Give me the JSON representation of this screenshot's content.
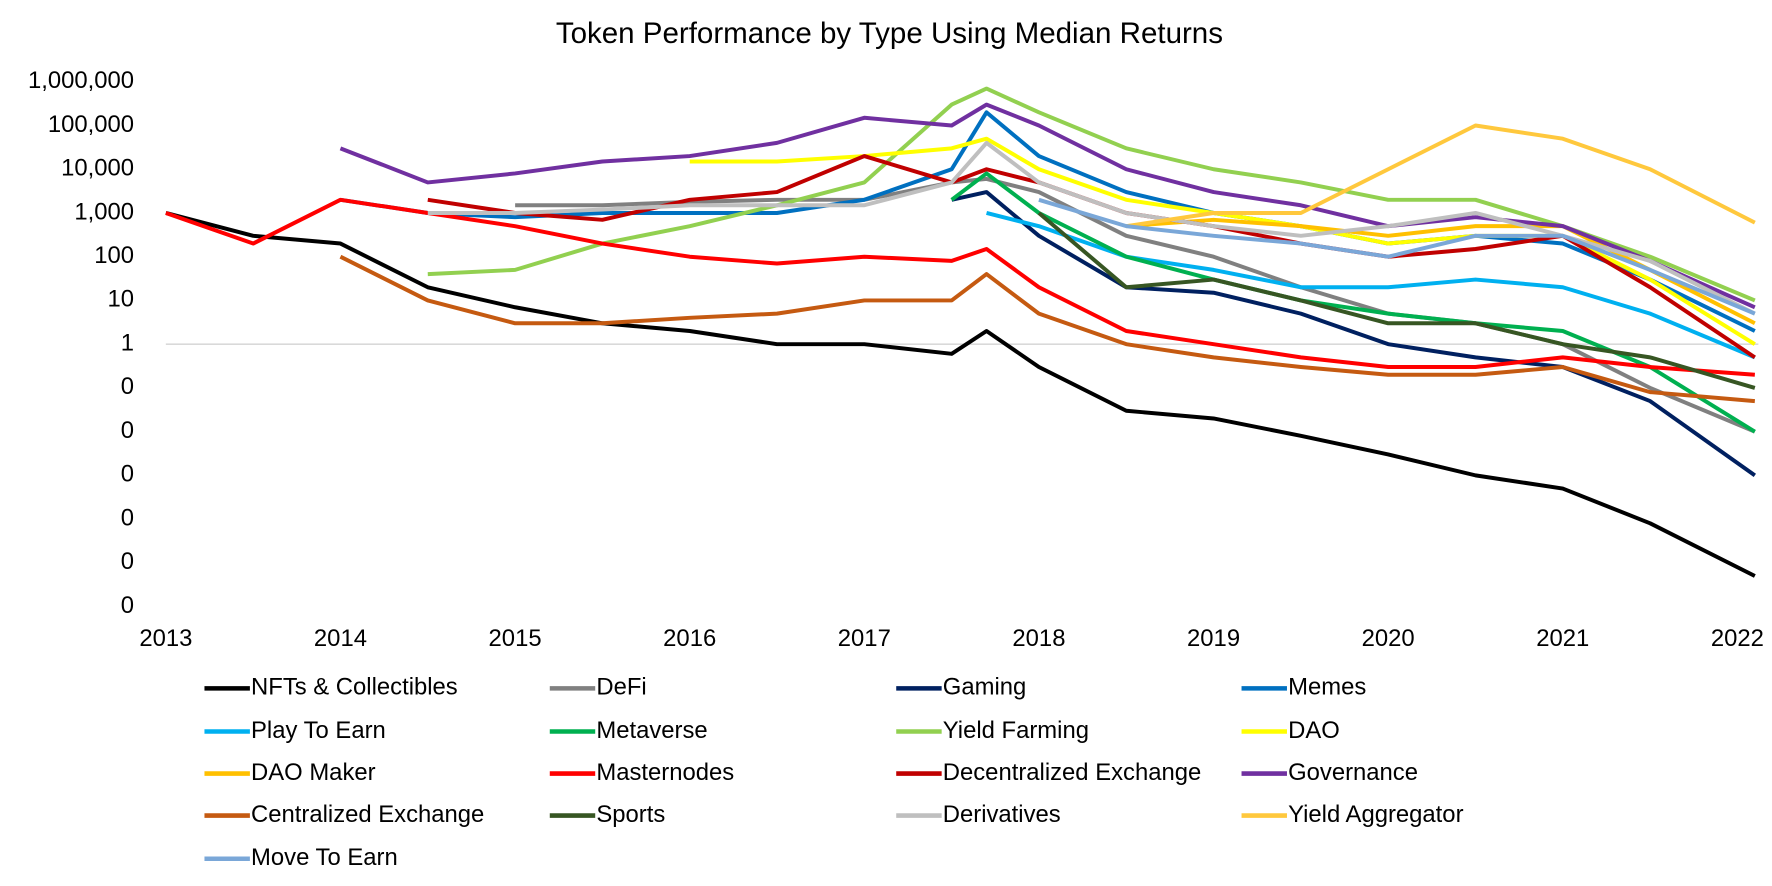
{
  "chart_data": {
    "type": "line",
    "title": "Token Performance by Type Using Median Returns",
    "log_y": true,
    "x": [
      2013,
      2013.5,
      2014,
      2014.5,
      2015,
      2015.5,
      2016,
      2016.5,
      2017,
      2017.5,
      2017.7,
      2018,
      2018.5,
      2019,
      2019.5,
      2020,
      2020.5,
      2021,
      2021.5,
      2022.1
    ],
    "xlim": [
      2013,
      2022.12
    ],
    "xticks": [
      2013,
      2014,
      2015,
      2016,
      2017,
      2018,
      2019,
      2020,
      2021,
      2022
    ],
    "ylim": [
      1e-06,
      1000000
    ],
    "yticks": [
      {
        "value": 1000000,
        "label": "1,000,000"
      },
      {
        "value": 100000,
        "label": "100,000"
      },
      {
        "value": 10000,
        "label": "10,000"
      },
      {
        "value": 1000,
        "label": "1,000"
      },
      100,
      10,
      1,
      {
        "value": 0.1,
        "label": "0"
      },
      {
        "value": 0.01,
        "label": "0"
      },
      {
        "value": 0.001,
        "label": "0"
      },
      {
        "value": 0.0001,
        "label": "0"
      },
      {
        "value": 1e-05,
        "label": "0"
      },
      {
        "value": 1e-06,
        "label": "0"
      }
    ],
    "series": [
      {
        "name": "NFTs & Collectibles",
        "color": "#000000",
        "values": [
          1000,
          300,
          200,
          20,
          7,
          3,
          2,
          1,
          1,
          0.6,
          2,
          0.3,
          0.03,
          0.02,
          0.008,
          0.003,
          0.001,
          0.0005,
          8e-05,
          5e-06
        ]
      },
      {
        "name": "DeFi",
        "color": "#808080",
        "values": [
          null,
          null,
          null,
          null,
          1500,
          1500,
          1800,
          2000,
          2000,
          5000,
          6000,
          3000,
          300,
          100,
          20,
          5,
          3,
          1,
          0.1,
          0.01
        ]
      },
      {
        "name": "Gaming",
        "color": "#002060",
        "values": [
          null,
          null,
          null,
          null,
          null,
          null,
          null,
          null,
          null,
          2000,
          3000,
          300,
          20,
          15,
          5,
          1,
          0.5,
          0.3,
          0.05,
          0.001
        ]
      },
      {
        "name": "Memes",
        "color": "#0070c0",
        "values": [
          null,
          null,
          2000,
          1000,
          800,
          1000,
          1000,
          1000,
          2000,
          10000,
          200000,
          20000,
          3000,
          1000,
          500,
          200,
          300,
          200,
          30,
          2
        ]
      },
      {
        "name": "Play To Earn",
        "color": "#00b0f0",
        "values": [
          null,
          null,
          null,
          null,
          null,
          null,
          null,
          null,
          null,
          null,
          1000,
          500,
          100,
          50,
          20,
          20,
          30,
          20,
          5,
          0.5
        ]
      },
      {
        "name": "Metaverse",
        "color": "#00b050",
        "values": [
          null,
          null,
          null,
          null,
          null,
          null,
          null,
          null,
          null,
          2000,
          8000,
          1000,
          100,
          30,
          10,
          5,
          3,
          2,
          0.3,
          0.01
        ]
      },
      {
        "name": "Yield Farming",
        "color": "#92d050",
        "values": [
          null,
          null,
          null,
          40,
          50,
          200,
          500,
          1500,
          5000,
          300000,
          700000,
          200000,
          30000,
          10000,
          5000,
          2000,
          2000,
          500,
          100,
          10
        ]
      },
      {
        "name": "DAO",
        "color": "#ffff00",
        "values": [
          null,
          null,
          null,
          null,
          null,
          null,
          15000,
          15000,
          20000,
          30000,
          50000,
          10000,
          2000,
          1000,
          500,
          200,
          300,
          300,
          30,
          1
        ]
      },
      {
        "name": "DAO Maker",
        "color": "#ffc000",
        "values": [
          null,
          null,
          null,
          null,
          null,
          null,
          null,
          null,
          null,
          null,
          null,
          null,
          500,
          700,
          500,
          300,
          500,
          500,
          50,
          3
        ]
      },
      {
        "name": "Masternodes",
        "color": "#ff0000",
        "values": [
          1000,
          200,
          2000,
          1000,
          500,
          200,
          100,
          70,
          100,
          80,
          150,
          20,
          2,
          1,
          0.5,
          0.3,
          0.3,
          0.5,
          0.3,
          0.2
        ]
      },
      {
        "name": "Decentralized Exchange",
        "color": "#c00000",
        "values": [
          null,
          null,
          null,
          2000,
          1000,
          700,
          2000,
          3000,
          20000,
          5000,
          10000,
          5000,
          1000,
          500,
          200,
          100,
          150,
          300,
          20,
          0.5
        ]
      },
      {
        "name": "Governance",
        "color": "#7030a0",
        "values": [
          null,
          null,
          30000,
          5000,
          8000,
          15000,
          20000,
          40000,
          150000,
          100000,
          300000,
          100000,
          10000,
          3000,
          1500,
          500,
          800,
          500,
          80,
          7
        ]
      },
      {
        "name": "Centralized Exchange",
        "color": "#c55a11",
        "values": [
          null,
          null,
          100,
          10,
          3,
          3,
          4,
          5,
          10,
          10,
          40,
          5,
          1,
          0.5,
          0.3,
          0.2,
          0.2,
          0.3,
          0.08,
          0.05
        ]
      },
      {
        "name": "Sports",
        "color": "#375623",
        "values": [
          null,
          null,
          null,
          null,
          null,
          null,
          null,
          null,
          null,
          null,
          null,
          1000,
          20,
          30,
          10,
          3,
          3,
          1,
          0.5,
          0.1
        ]
      },
      {
        "name": "Derivatives",
        "color": "#bfbfbf",
        "values": [
          null,
          null,
          null,
          1000,
          1000,
          1200,
          1500,
          1500,
          1500,
          5000,
          40000,
          5000,
          1000,
          500,
          300,
          500,
          1000,
          300,
          80,
          5
        ]
      },
      {
        "name": "Yield Aggregator",
        "color": "#ffc83d",
        "values": [
          null,
          null,
          null,
          null,
          null,
          null,
          null,
          null,
          null,
          null,
          null,
          null,
          500,
          1000,
          1000,
          10000,
          100000,
          50000,
          10000,
          600
        ]
      },
      {
        "name": "Move To Earn",
        "color": "#7aa7d8",
        "values": [
          null,
          null,
          null,
          null,
          null,
          null,
          null,
          null,
          null,
          null,
          null,
          2000,
          500,
          300,
          200,
          100,
          300,
          300,
          50,
          5
        ]
      }
    ]
  }
}
